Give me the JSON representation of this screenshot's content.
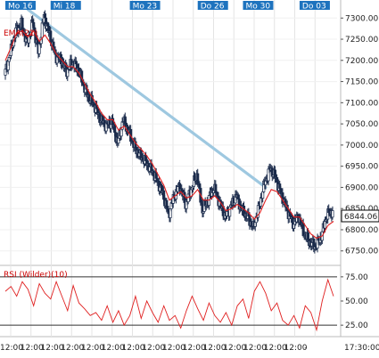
{
  "chart_data": [
    {
      "type": "candlestick",
      "ylim": [
        6720,
        7330
      ],
      "yticks": [
        "7300.00",
        "7250.00",
        "7200.00",
        "7150.00",
        "7100.00",
        "7050.00",
        "7000.00",
        "6950.00",
        "6900.00",
        "6850.00",
        "6800.00",
        "6750.00"
      ],
      "ytick_values": [
        7300,
        7250,
        7200,
        7150,
        7100,
        7050,
        7000,
        6950,
        6900,
        6850,
        6800,
        6750
      ],
      "x_session_labels": [
        "Mo 16",
        "Mi 18",
        "Mo 23",
        "Do 26",
        "Mo 30",
        "Do 03"
      ],
      "x_session_index": [
        0,
        4,
        11,
        17,
        21,
        26
      ],
      "x_bottom_labels": [
        "12:00",
        "12:00",
        "12:00",
        "12:00",
        "12:00",
        "12:00",
        "12:00",
        "12:00",
        "12:00",
        "12:00",
        "12:00",
        "12:00",
        "12:00",
        "12:00",
        "12:00",
        "-",
        "17:30:00"
      ],
      "current_price": "6844.06",
      "indicator_label": "EMA(21)",
      "close_path": [
        7165,
        7215,
        7270,
        7285,
        7240,
        7290,
        7220,
        7305,
        7260,
        7210,
        7200,
        7175,
        7195,
        7180,
        7140,
        7110,
        7090,
        7060,
        7045,
        7055,
        7005,
        7060,
        7030,
        6995,
        6975,
        6960,
        6940,
        6915,
        6885,
        6835,
        6880,
        6905,
        6860,
        6895,
        6930,
        6845,
        6870,
        6900,
        6865,
        6830,
        6855,
        6880,
        6845,
        6830,
        6805,
        6855,
        6910,
        6945,
        6920,
        6880,
        6845,
        6815,
        6830,
        6790,
        6770,
        6760,
        6785,
        6835,
        6844
      ],
      "ema_path": [
        7200,
        7230,
        7265,
        7270,
        7255,
        7270,
        7245,
        7260,
        7240,
        7215,
        7200,
        7185,
        7185,
        7170,
        7145,
        7120,
        7100,
        7075,
        7060,
        7060,
        7035,
        7045,
        7025,
        7005,
        6990,
        6975,
        6955,
        6930,
        6905,
        6870,
        6880,
        6890,
        6875,
        6880,
        6895,
        6870,
        6870,
        6880,
        6865,
        6845,
        6850,
        6860,
        6850,
        6840,
        6825,
        6840,
        6870,
        6895,
        6890,
        6870,
        6850,
        6830,
        6830,
        6810,
        6790,
        6780,
        6785,
        6810,
        6820
      ],
      "trendline": {
        "start_index": 4,
        "start_value": 7320,
        "end_index": 46,
        "end_value": 6900
      }
    },
    {
      "type": "line",
      "title": "RSI (Wilder)(10)",
      "ylim": [
        15,
        85
      ],
      "yticks": [
        "75.00",
        "50.00",
        "25.00"
      ],
      "ytick_values": [
        75,
        50,
        25
      ],
      "reference_lines": [
        75,
        25
      ],
      "values": [
        60,
        65,
        55,
        70,
        62,
        45,
        68,
        58,
        52,
        70,
        55,
        40,
        66,
        48,
        42,
        35,
        38,
        30,
        45,
        28,
        40,
        25,
        35,
        55,
        32,
        50,
        38,
        28,
        45,
        30,
        35,
        22,
        40,
        55,
        42,
        30,
        48,
        35,
        28,
        38,
        25,
        45,
        52,
        32,
        60,
        70,
        58,
        40,
        48,
        30,
        25,
        35,
        22,
        45,
        38,
        20,
        50,
        72,
        55
      ]
    }
  ],
  "colors": {
    "candle": "#1a2a4a",
    "ema": "#e02020",
    "trendline": "#9ec8e0",
    "rsi": "#e02020",
    "reference": "#333333",
    "date_label_bg": "#1e73be",
    "price_box_border": "#000000"
  }
}
